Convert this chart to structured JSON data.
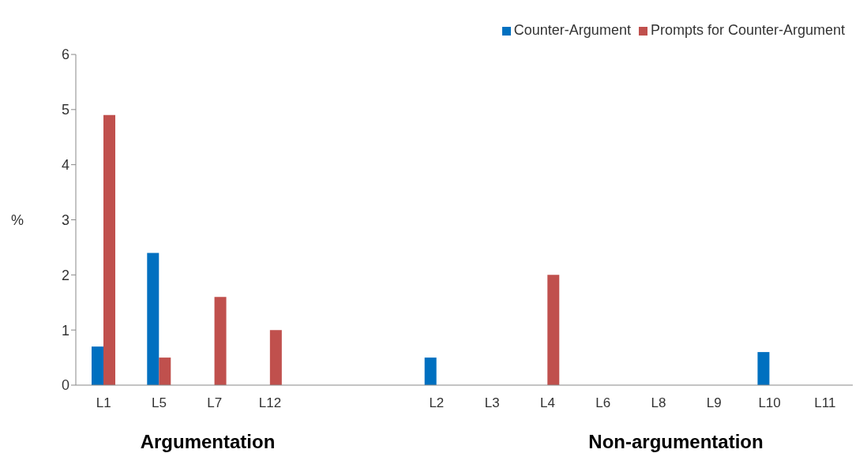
{
  "chart_data": {
    "type": "bar",
    "ylabel": "%",
    "categories": [
      "L1",
      "L5",
      "L7",
      "L12",
      null,
      null,
      "L2",
      "L3",
      "L4",
      "L6",
      "L8",
      "L9",
      "L10",
      "L11"
    ],
    "series": [
      {
        "name": "Counter-Argument",
        "color": "#0070c0",
        "values": [
          0.7,
          2.4,
          0,
          0,
          null,
          null,
          0.5,
          0,
          0,
          0,
          0,
          0,
          0.6,
          0
        ]
      },
      {
        "name": "Prompts for Counter-Argument",
        "color": "#c0504d",
        "values": [
          4.9,
          0.5,
          1.6,
          1.0,
          null,
          null,
          0,
          0,
          2.0,
          0,
          0,
          0,
          0,
          0
        ]
      }
    ],
    "ylim": [
      0,
      6
    ],
    "yticks": [
      0,
      1,
      2,
      3,
      4,
      5,
      6
    ],
    "legend": "top right",
    "annotations": [
      "Argumentation",
      "Non-argumentation"
    ]
  }
}
